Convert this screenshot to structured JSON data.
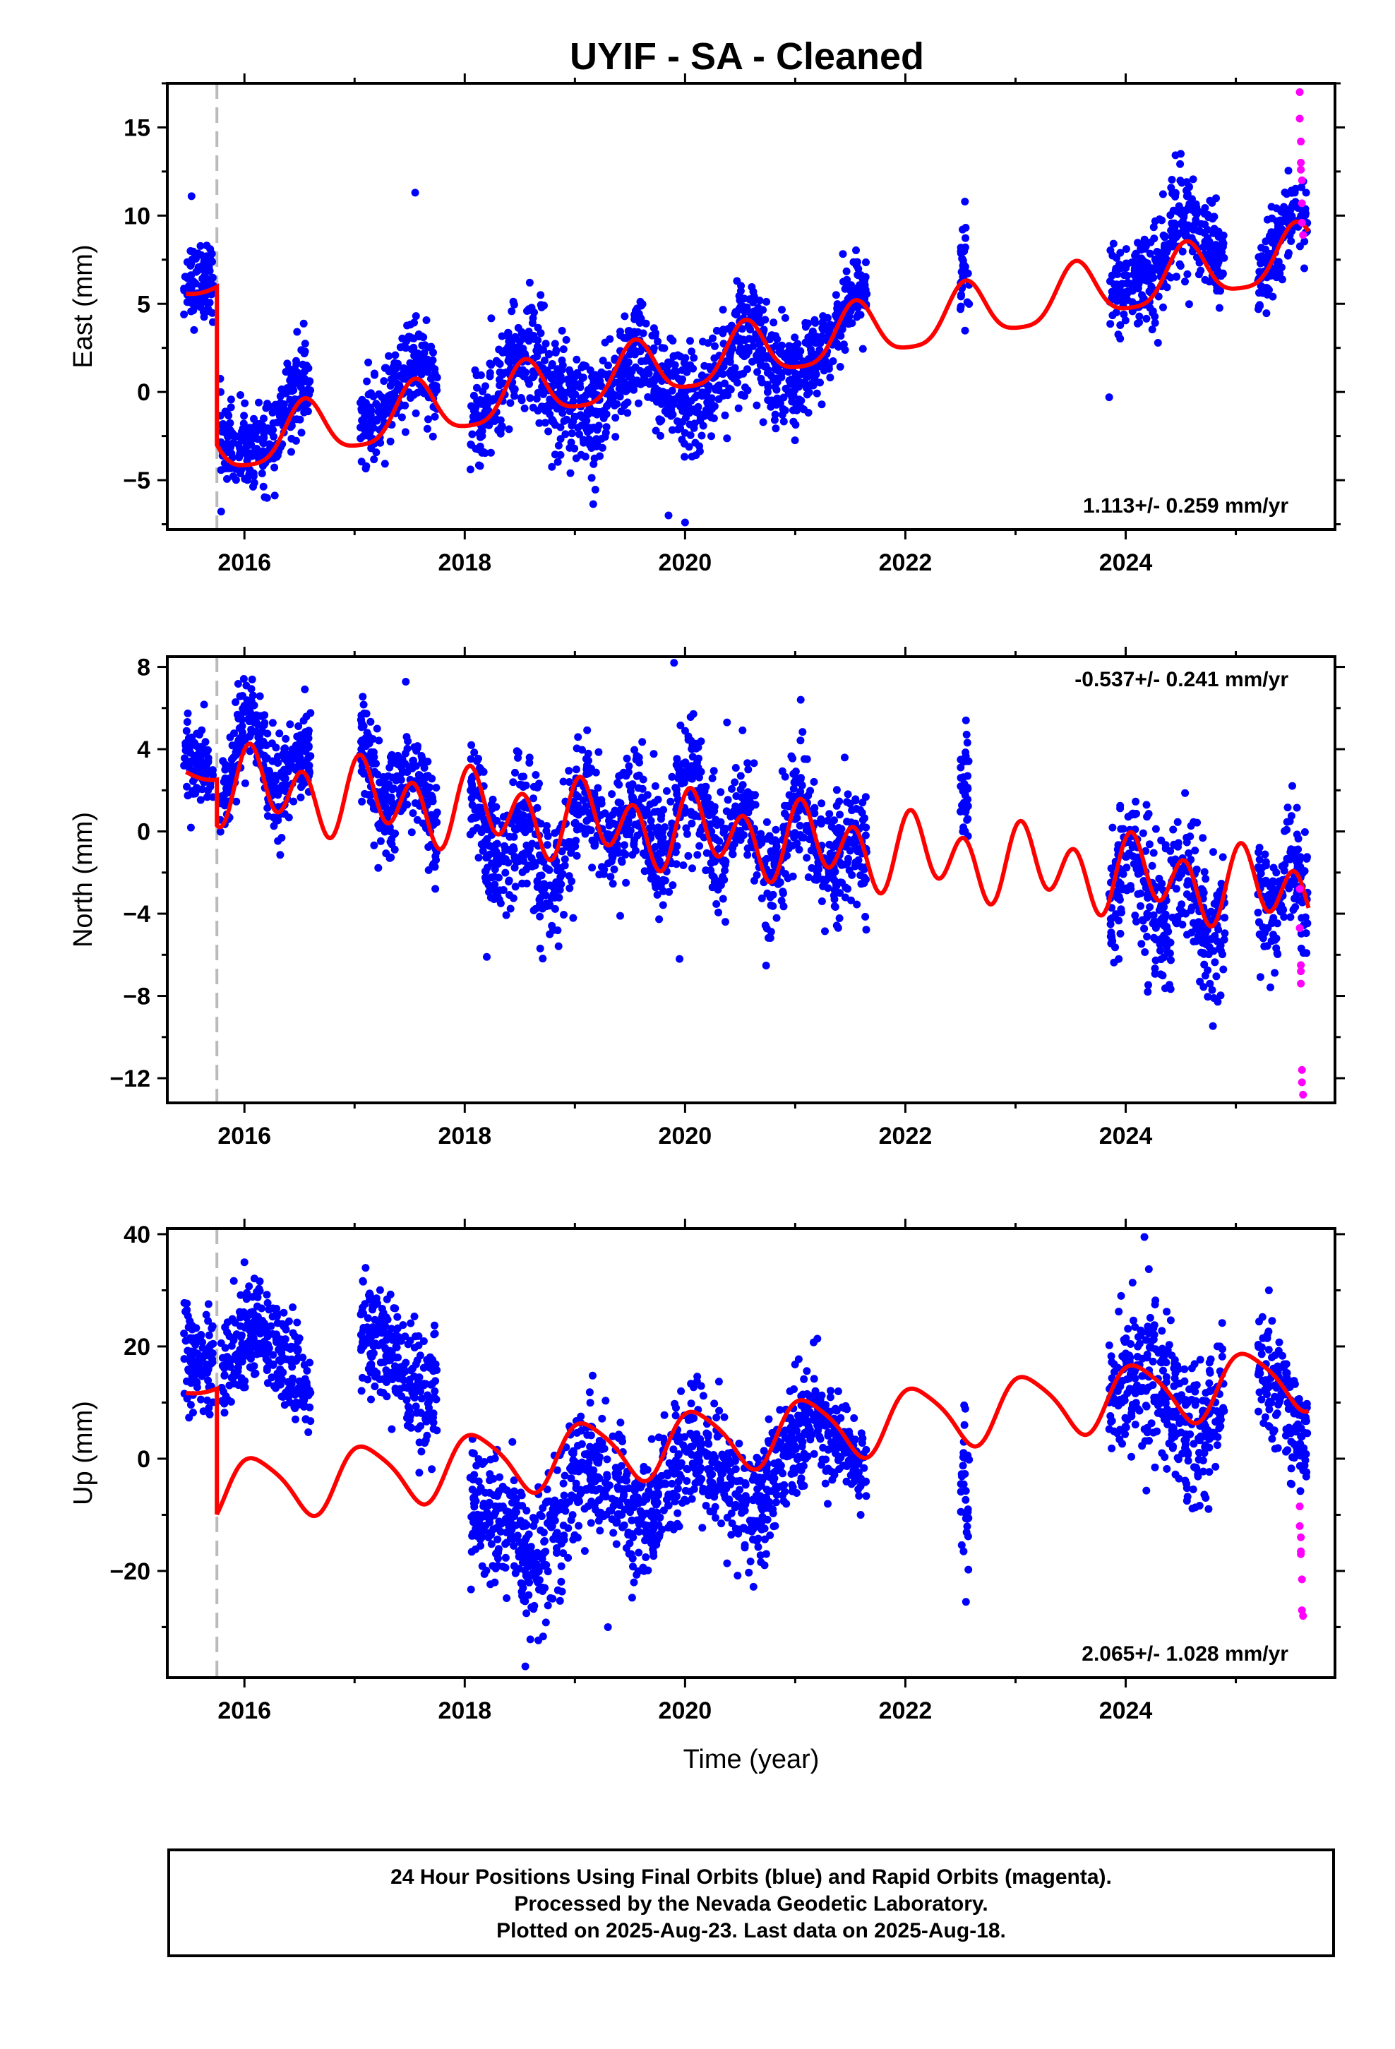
{
  "title": "UYIF  - SA - Cleaned",
  "footer": {
    "line1": "24 Hour Positions Using Final Orbits (blue) and Rapid Orbits (magenta).",
    "line2": "Processed by the Nevada Geodetic Laboratory.",
    "line3": "Plotted on 2025-Aug-23. Last data on 2025-Aug-18."
  },
  "colors": {
    "final": "#0000ff",
    "rapid": "#ff00ff",
    "model": "#ff0000",
    "equipment_change": "#bbbbbb"
  },
  "chart_data": [
    {
      "type": "scatter",
      "component": "east",
      "ylabel": "East (mm)",
      "xlabel": "",
      "xlim": [
        2015.3,
        2025.9
      ],
      "ylim": [
        -7.8,
        17.5
      ],
      "xticks": [
        2016,
        2018,
        2020,
        2022,
        2024
      ],
      "yticks": [
        -5,
        0,
        5,
        10,
        15
      ],
      "ytick_labels": [
        "−5",
        "0",
        "5",
        "10",
        "15"
      ],
      "rate_text": "1.113+/- 0.259 mm/yr",
      "rate_position": "bottom-right",
      "offset_epoch": 2015.75,
      "model": {
        "trend": 1.113,
        "pre": 6.3,
        "post": -3.2,
        "pre_step": 5.9,
        "ann_amp": 1.6,
        "ann_phase": 4.4,
        "semi_amp": 0.35,
        "semi_phase": 1.0,
        "pre_ann_amp": 0.4,
        "pre_ann_phase": 1.0
      },
      "segments": [
        {
          "range": [
            2015.45,
            2015.72
          ],
          "offset": 0.6,
          "noise": 1.1
        },
        {
          "range": [
            2015.78,
            2016.6
          ],
          "offset": 0.8,
          "noise": 1.2
        },
        {
          "range": [
            2017.05,
            2017.75
          ],
          "offset": 0.9,
          "noise": 1.2
        },
        {
          "range": [
            2018.05,
            2019.1
          ],
          "offset": 0.4,
          "noise": 1.6
        },
        {
          "range": [
            2019.1,
            2021.1
          ],
          "offset": -0.8,
          "noise": 1.5
        },
        {
          "range": [
            2021.1,
            2021.65
          ],
          "offset": 0.2,
          "noise": 1.2
        },
        {
          "range": [
            2022.5,
            2022.58
          ],
          "offset": 0.5,
          "noise": 1.6
        },
        {
          "range": [
            2023.85,
            2024.9
          ],
          "offset": 1.1,
          "noise": 1.4
        },
        {
          "range": [
            2025.2,
            2025.65
          ],
          "offset": 0.5,
          "noise": 1.1
        }
      ],
      "outliers": [
        {
          "x": 2015.52,
          "y": 11.1
        },
        {
          "x": 2017.55,
          "y": 11.3
        },
        {
          "x": 2019.85,
          "y": -7.0
        },
        {
          "x": 2020.0,
          "y": -7.4
        },
        {
          "x": 2024.5,
          "y": 13.5
        },
        {
          "x": 2023.85,
          "y": -0.3
        }
      ],
      "rapid_points": [
        {
          "x": 2025.58,
          "y": 17.0
        },
        {
          "x": 2025.58,
          "y": 15.5
        },
        {
          "x": 2025.59,
          "y": 14.2
        },
        {
          "x": 2025.59,
          "y": 13.0
        },
        {
          "x": 2025.59,
          "y": 12.6
        },
        {
          "x": 2025.6,
          "y": 12.0
        },
        {
          "x": 2025.6,
          "y": 10.7
        },
        {
          "x": 2025.6,
          "y": 9.6
        },
        {
          "x": 2025.61,
          "y": 8.9
        }
      ]
    },
    {
      "type": "scatter",
      "component": "north",
      "ylabel": "North (mm)",
      "xlabel": "",
      "xlim": [
        2015.3,
        2025.9
      ],
      "ylim": [
        -13.2,
        8.5
      ],
      "xticks": [
        2016,
        2018,
        2020,
        2022,
        2024
      ],
      "yticks": [
        -12,
        -8,
        -4,
        0,
        4,
        8
      ],
      "ytick_labels": [
        "−12",
        "−8",
        "−4",
        "0",
        "4",
        "8"
      ],
      "rate_text": "-0.537+/- 0.241 mm/yr",
      "rate_position": "top-right",
      "offset_epoch": 2015.75,
      "model": {
        "trend": -0.537,
        "pre": 2.3,
        "post": 2.3,
        "pre_step": 3.0,
        "ann_amp": 0.75,
        "ann_phase": 0.6,
        "semi_amp": 1.55,
        "semi_phase": 1.1,
        "pre_ann_amp": 0.4,
        "pre_ann_phase": 0.5
      },
      "segments": [
        {
          "range": [
            2015.45,
            2015.72
          ],
          "offset": 0.8,
          "noise": 1.0
        },
        {
          "range": [
            2015.78,
            2016.6
          ],
          "offset": 1.2,
          "noise": 1.1
        },
        {
          "range": [
            2017.05,
            2017.75
          ],
          "offset": 0.6,
          "noise": 1.3
        },
        {
          "range": [
            2018.05,
            2019.1
          ],
          "offset": -1.4,
          "noise": 1.6
        },
        {
          "range": [
            2019.1,
            2021.1
          ],
          "offset": 0.3,
          "noise": 1.5
        },
        {
          "range": [
            2021.1,
            2021.65
          ],
          "offset": -0.3,
          "noise": 1.4
        },
        {
          "range": [
            2022.5,
            2022.58
          ],
          "offset": 1.8,
          "noise": 1.3
        },
        {
          "range": [
            2023.85,
            2024.9
          ],
          "offset": -0.8,
          "noise": 1.6
        },
        {
          "range": [
            2025.2,
            2025.65
          ],
          "offset": 0.2,
          "noise": 1.6
        }
      ],
      "outliers": [
        {
          "x": 2019.9,
          "y": 8.2
        },
        {
          "x": 2021.05,
          "y": 6.4
        },
        {
          "x": 2018.2,
          "y": -6.1
        },
        {
          "x": 2019.95,
          "y": -6.2
        },
        {
          "x": 2024.2,
          "y": -7.8
        },
        {
          "x": 2024.8,
          "y": -8.1
        },
        {
          "x": 2022.55,
          "y": 5.4
        }
      ],
      "rapid_points": [
        {
          "x": 2025.58,
          "y": -2.8
        },
        {
          "x": 2025.58,
          "y": -4.7
        },
        {
          "x": 2025.59,
          "y": -6.5
        },
        {
          "x": 2025.59,
          "y": -6.8
        },
        {
          "x": 2025.59,
          "y": -7.4
        },
        {
          "x": 2025.6,
          "y": -11.6
        },
        {
          "x": 2025.6,
          "y": -12.2
        },
        {
          "x": 2025.61,
          "y": -12.8
        }
      ]
    },
    {
      "type": "scatter",
      "component": "up",
      "ylabel": "Up (mm)",
      "xlabel": "Time (year)",
      "xlim": [
        2015.3,
        2025.9
      ],
      "ylim": [
        -39,
        41
      ],
      "xticks": [
        2016,
        2018,
        2020,
        2022,
        2024
      ],
      "yticks": [
        -20,
        0,
        20,
        40
      ],
      "ytick_labels": [
        "−20",
        "0",
        "20",
        "40"
      ],
      "rate_text": "2.065+/- 1.028 mm/yr",
      "rate_position": "bottom-right",
      "offset_epoch": 2015.75,
      "model": {
        "trend": 2.065,
        "pre": 12.0,
        "post": -5.8,
        "pre_step": 12.5,
        "ann_amp": 5.5,
        "ann_phase": 0.9,
        "semi_amp": 1.0,
        "semi_phase": 2.4,
        "pre_ann_amp": 1.0,
        "pre_ann_phase": 1.0
      },
      "segments": [
        {
          "range": [
            2015.45,
            2015.72
          ],
          "offset": 6.0,
          "noise": 4.5
        },
        {
          "range": [
            2015.78,
            2016.6
          ],
          "offset": 22.0,
          "noise": 4.5
        },
        {
          "range": [
            2017.05,
            2017.75
          ],
          "offset": 20.0,
          "noise": 5.0
        },
        {
          "range": [
            2018.05,
            2019.1
          ],
          "offset": -12.0,
          "noise": 6.0
        },
        {
          "range": [
            2019.1,
            2021.1
          ],
          "offset": -7.0,
          "noise": 5.5
        },
        {
          "range": [
            2021.1,
            2021.65
          ],
          "offset": -2.0,
          "noise": 4.0
        },
        {
          "range": [
            2022.5,
            2022.58
          ],
          "offset": -8.0,
          "noise": 7.0
        },
        {
          "range": [
            2023.85,
            2024.9
          ],
          "offset": -2.0,
          "noise": 6.5
        },
        {
          "range": [
            2025.2,
            2025.65
          ],
          "offset": -2.0,
          "noise": 5.5
        }
      ],
      "outliers": [
        {
          "x": 2024.17,
          "y": 39.5
        },
        {
          "x": 2018.55,
          "y": -37.0
        },
        {
          "x": 2016.0,
          "y": 35.0
        },
        {
          "x": 2017.1,
          "y": 34.0
        },
        {
          "x": 2022.55,
          "y": -25.5
        },
        {
          "x": 2019.3,
          "y": -30.0
        },
        {
          "x": 2025.3,
          "y": 30.0
        }
      ],
      "rapid_points": [
        {
          "x": 2025.58,
          "y": -8.5
        },
        {
          "x": 2025.58,
          "y": -12.0
        },
        {
          "x": 2025.59,
          "y": -14.0
        },
        {
          "x": 2025.59,
          "y": -16.5
        },
        {
          "x": 2025.59,
          "y": -17.0
        },
        {
          "x": 2025.6,
          "y": -21.5
        },
        {
          "x": 2025.6,
          "y": -27.0
        },
        {
          "x": 2025.61,
          "y": -28.0
        }
      ]
    }
  ]
}
